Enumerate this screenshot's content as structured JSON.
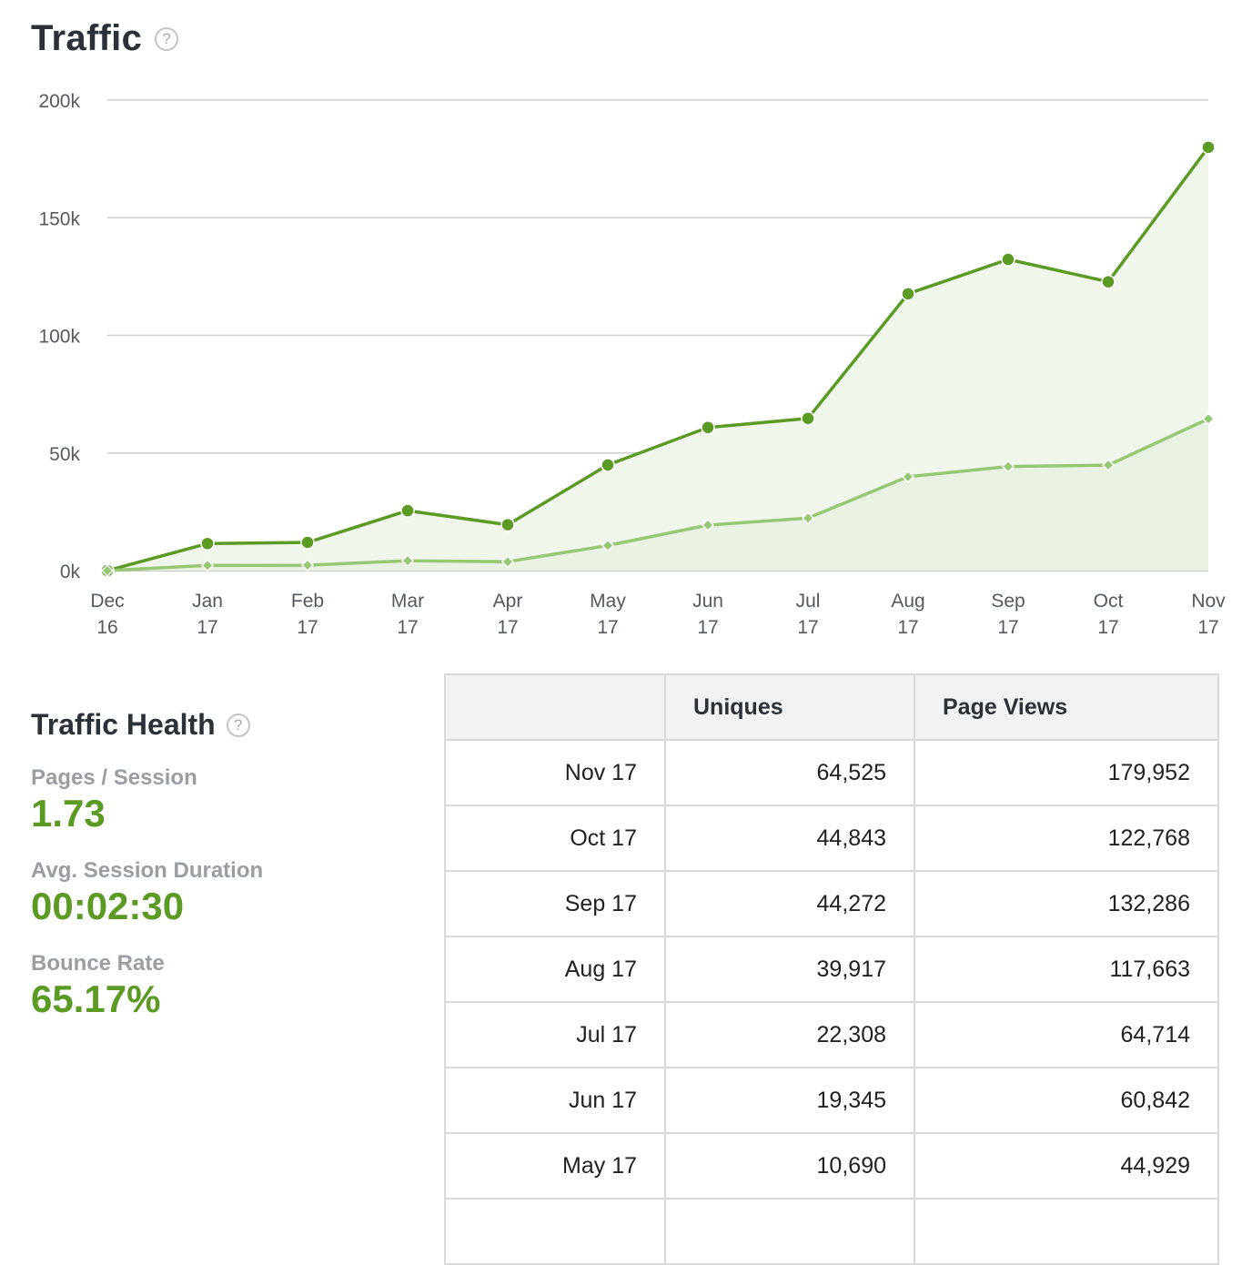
{
  "header": {
    "title": "Traffic",
    "help": "?"
  },
  "chart_data": {
    "type": "area",
    "categories": [
      [
        "Dec",
        "16"
      ],
      [
        "Jan",
        "17"
      ],
      [
        "Feb",
        "17"
      ],
      [
        "Mar",
        "17"
      ],
      [
        "Apr",
        "17"
      ],
      [
        "May",
        "17"
      ],
      [
        "Jun",
        "17"
      ],
      [
        "Jul",
        "17"
      ],
      [
        "Aug",
        "17"
      ],
      [
        "Sep",
        "17"
      ],
      [
        "Oct",
        "17"
      ],
      [
        "Nov",
        "17"
      ]
    ],
    "y_ticks": [
      "0k",
      "50k",
      "100k",
      "150k",
      "200k"
    ],
    "ylim": [
      0,
      200000
    ],
    "grid": true,
    "series": [
      {
        "values": [
          0,
          11500,
          12000,
          25500,
          19500,
          44929,
          60842,
          64714,
          117663,
          132286,
          122768,
          179952
        ],
        "color": "#5b9a23",
        "marker": "circle"
      },
      {
        "values": [
          0,
          2200,
          2300,
          4200,
          3800,
          10690,
          19345,
          22308,
          39917,
          44272,
          44843,
          64525
        ],
        "color": "#96c874",
        "marker": "diamond"
      }
    ]
  },
  "health": {
    "title": "Traffic Health",
    "help": "?",
    "metrics": [
      {
        "label": "Pages / Session",
        "value": "1.73"
      },
      {
        "label": "Avg. Session Duration",
        "value": "00:02:30"
      },
      {
        "label": "Bounce Rate",
        "value": "65.17%"
      }
    ]
  },
  "table": {
    "headers": [
      "",
      "Uniques",
      "Page Views"
    ],
    "rows": [
      [
        "Nov 17",
        "64,525",
        "179,952"
      ],
      [
        "Oct 17",
        "44,843",
        "122,768"
      ],
      [
        "Sep 17",
        "44,272",
        "132,286"
      ],
      [
        "Aug 17",
        "39,917",
        "117,663"
      ],
      [
        "Jul 17",
        "22,308",
        "64,714"
      ],
      [
        "Jun 17",
        "19,345",
        "60,842"
      ],
      [
        "May 17",
        "10,690",
        "44,929"
      ],
      [
        "",
        "",
        ""
      ]
    ]
  }
}
